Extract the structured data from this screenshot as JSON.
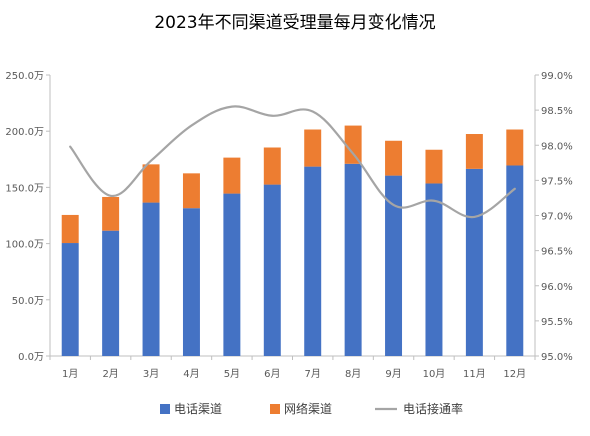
{
  "chart_data": {
    "type": "bar",
    "title": "2023年不同渠道受理量每月变化情况",
    "categories": [
      "1月",
      "2月",
      "3月",
      "4月",
      "5月",
      "6月",
      "7月",
      "8月",
      "9月",
      "10月",
      "11月",
      "12月"
    ],
    "series": [
      {
        "name": "电话渠道",
        "kind": "stacked-bar",
        "axis": "left",
        "color": "#4472C4",
        "values": [
          100.5,
          111.5,
          136.5,
          131.5,
          144.5,
          152.5,
          168.5,
          171,
          160.5,
          153.5,
          166.5,
          169.5
        ]
      },
      {
        "name": "网络渠道",
        "kind": "stacked-bar",
        "axis": "left",
        "color": "#ED7D31",
        "values": [
          25,
          30,
          34,
          31,
          32,
          33,
          33,
          34,
          31,
          30,
          31,
          32
        ]
      },
      {
        "name": "电话接通率",
        "kind": "line",
        "axis": "right",
        "color": "#A5A5A5",
        "values": [
          97.98,
          97.28,
          97.78,
          98.28,
          98.55,
          98.42,
          98.48,
          97.88,
          97.15,
          97.21,
          96.98,
          97.38
        ]
      }
    ],
    "y_left": {
      "min": 0,
      "max": 250,
      "ticks": [
        0,
        50,
        100,
        150,
        200,
        250
      ],
      "tick_labels": [
        "0.0万",
        "50.0万",
        "100.0万",
        "150.0万",
        "200.0万",
        "250.0万"
      ]
    },
    "y_right": {
      "min": 95.0,
      "max": 99.0,
      "ticks": [
        95.0,
        95.5,
        96.0,
        96.5,
        97.0,
        97.5,
        98.0,
        98.5,
        99.0
      ],
      "tick_labels": [
        "95.0%",
        "95.5%",
        "96.0%",
        "96.5%",
        "97.0%",
        "97.5%",
        "98.0%",
        "98.5%",
        "99.0%"
      ]
    },
    "grid": false,
    "legend_position": "bottom"
  }
}
